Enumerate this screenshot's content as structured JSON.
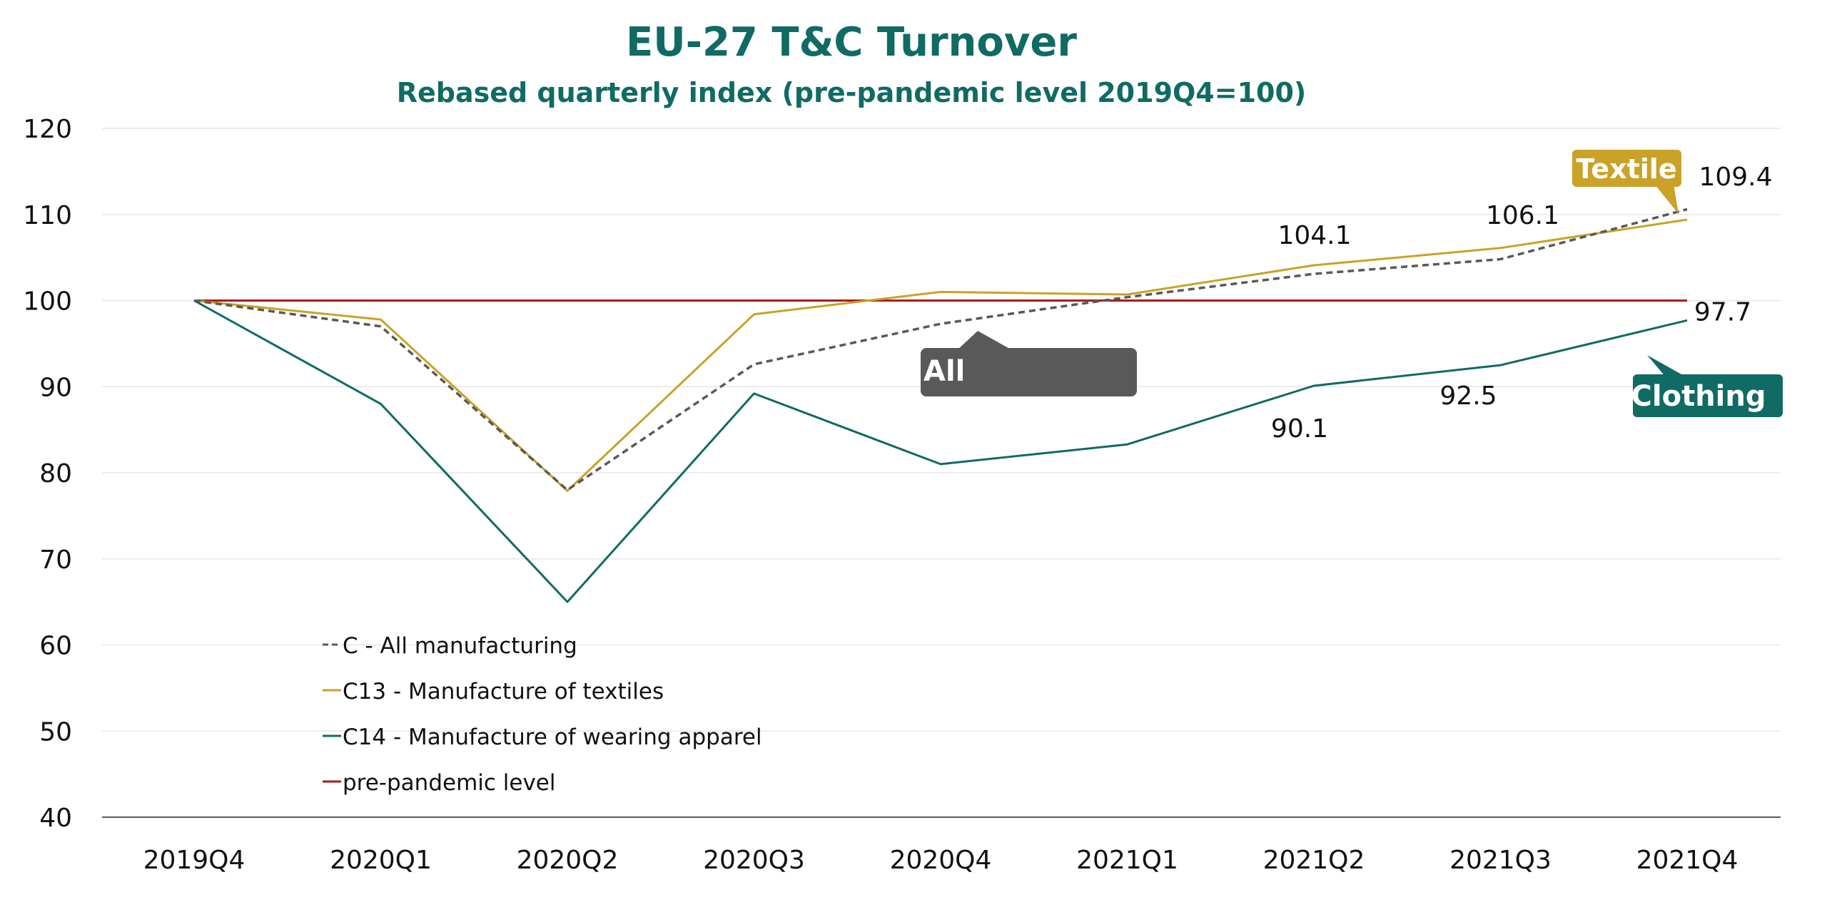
{
  "chart_data": {
    "type": "line",
    "title": "EU-27 T&C Turnover",
    "subtitle": "Rebased quarterly index (pre-pandemic level 2019Q4=100)",
    "xlabel": "",
    "ylabel": "",
    "categories": [
      "2019Q4",
      "2020Q1",
      "2020Q2",
      "2020Q3",
      "2020Q4",
      "2021Q1",
      "2021Q2",
      "2021Q3",
      "2021Q4"
    ],
    "ylim": [
      40,
      120
    ],
    "yticks": [
      40,
      50,
      60,
      70,
      80,
      90,
      100,
      110,
      120
    ],
    "grid": true,
    "legend_position": "lower-left",
    "series": [
      {
        "name": "C - All manufacturing",
        "color": "#595959",
        "dash": true,
        "values": [
          100,
          97,
          78,
          92.6,
          97.3,
          100.4,
          103.1,
          104.8,
          110.6
        ]
      },
      {
        "name": "C13 - Manufacture of textiles",
        "color": "#c9a227",
        "dash": false,
        "values": [
          100,
          97.8,
          77.9,
          98.4,
          101,
          100.7,
          104.1,
          106.1,
          109.4
        ]
      },
      {
        "name": "C14 - Manufacture of wearing apparel",
        "color": "#0f6b64",
        "dash": false,
        "values": [
          100,
          88,
          65,
          89.2,
          81,
          83.3,
          90.1,
          92.5,
          97.7
        ]
      },
      {
        "name": "pre-pandemic level",
        "color": "#a61c1c",
        "dash": false,
        "values": [
          100,
          100,
          100,
          100,
          100,
          100,
          100,
          100,
          100
        ]
      }
    ],
    "data_labels": [
      {
        "text": "104.1",
        "category": "2021Q2",
        "value": 104.1
      },
      {
        "text": "106.1",
        "category": "2021Q3",
        "value": 106.1
      },
      {
        "text": "109.4",
        "category": "2021Q4",
        "value": 109.4
      },
      {
        "text": "90.1",
        "category": "2021Q2",
        "value": 90.1
      },
      {
        "text": "92.5",
        "category": "2021Q3",
        "value": 92.5
      },
      {
        "text": "97.7",
        "category": "2021Q4",
        "value": 97.7
      }
    ],
    "callouts": [
      {
        "text": "Textile",
        "color": "#c9a227"
      },
      {
        "text": "Clothing",
        "color": "#0f6b64"
      },
      {
        "text": "All",
        "color": "#595959"
      }
    ]
  }
}
